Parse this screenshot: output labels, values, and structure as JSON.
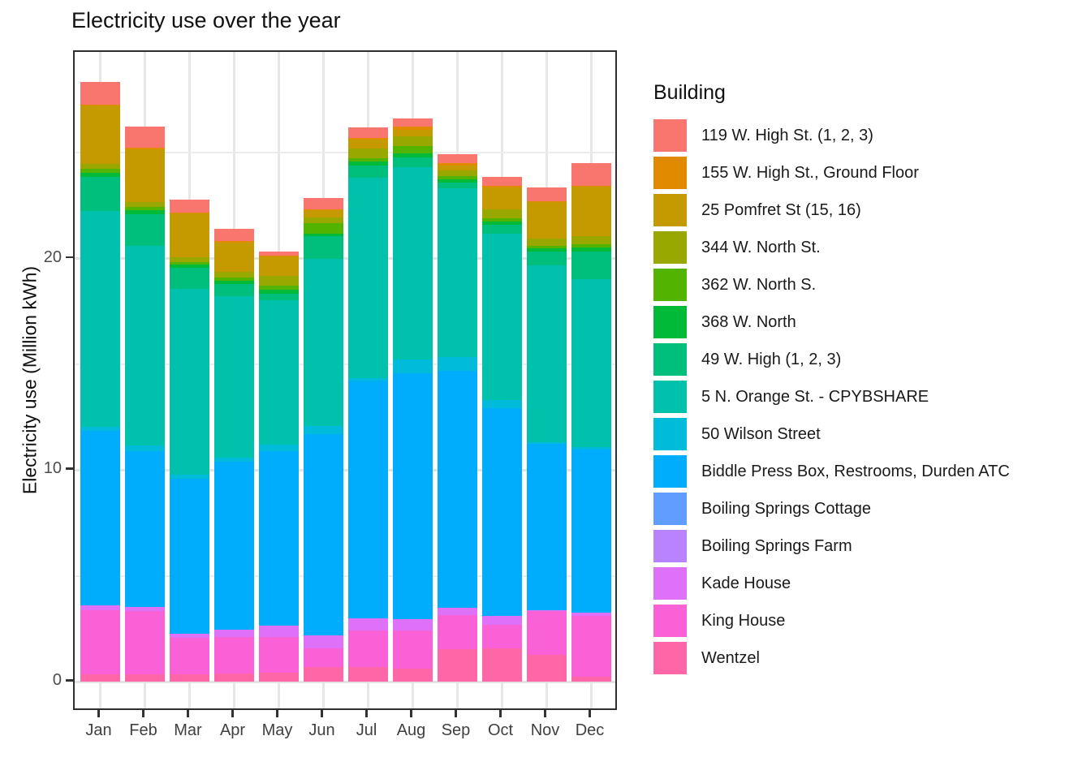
{
  "title": "Electricity use over the year",
  "y_axis": {
    "title": "Electricity use (Million kWh)",
    "ticks": [
      {
        "label": "0",
        "value": 0
      },
      {
        "label": "10",
        "value": 10
      },
      {
        "label": "20",
        "value": 20
      }
    ],
    "minor_gridlines": [
      5,
      15,
      25
    ]
  },
  "x_axis": {
    "categories": [
      "Jan",
      "Feb",
      "Mar",
      "Apr",
      "May",
      "Jun",
      "Jul",
      "Aug",
      "Sep",
      "Oct",
      "Nov",
      "Dec"
    ]
  },
  "legend": {
    "title": "Building"
  },
  "chart_data": {
    "type": "bar",
    "stacked": true,
    "title": "Electricity use over the year",
    "xlabel": "",
    "ylabel": "Electricity use (Million kWh)",
    "ylim": [
      0,
      29.7
    ],
    "grid": true,
    "legend_position": "right",
    "categories": [
      "Jan",
      "Feb",
      "Mar",
      "Apr",
      "May",
      "Jun",
      "Jul",
      "Aug",
      "Sep",
      "Oct",
      "Nov",
      "Dec"
    ],
    "series": [
      {
        "name": "119 W. High St. (1, 2, 3)",
        "color": "#F8766D",
        "values": [
          1.07,
          0.98,
          0.62,
          0.58,
          0.21,
          0.53,
          0.49,
          0.39,
          0.43,
          0.45,
          0.64,
          1.06
        ]
      },
      {
        "name": "155 W. High St., Ground Floor",
        "color": "#E18A00",
        "values": [
          0.06,
          0.06,
          0.05,
          0.05,
          0.04,
          0.04,
          0.06,
          0.13,
          0.1,
          0.06,
          0.06,
          0.05
        ]
      },
      {
        "name": "25 Pomfret St (15, 16)",
        "color": "#C49A00",
        "values": [
          2.74,
          2.52,
          2.07,
          1.41,
          0.92,
          0.36,
          0.42,
          0.3,
          0.23,
          1.04,
          1.71,
          2.34
        ]
      },
      {
        "name": "344 W. North St.",
        "color": "#99A800",
        "values": [
          0.25,
          0.23,
          0.21,
          0.26,
          0.45,
          0.28,
          0.46,
          0.49,
          0.28,
          0.41,
          0.35,
          0.39
        ]
      },
      {
        "name": "362 W. North S.",
        "color": "#53B400",
        "values": [
          0.18,
          0.16,
          0.12,
          0.15,
          0.19,
          0.47,
          0.17,
          0.34,
          0.17,
          0.16,
          0.13,
          0.16
        ]
      },
      {
        "name": "368 W. North",
        "color": "#00BA38",
        "values": [
          0.18,
          0.17,
          0.17,
          0.17,
          0.19,
          0.13,
          0.19,
          0.17,
          0.14,
          0.16,
          0.15,
          0.17
        ]
      },
      {
        "name": "49 W. High (1, 2, 3)",
        "color": "#00BF7D",
        "values": [
          1.64,
          1.5,
          0.99,
          0.55,
          0.3,
          1.06,
          0.58,
          0.47,
          0.26,
          0.41,
          0.64,
          1.31
        ]
      },
      {
        "name": "5 N. Orange St. - CPYBSHARE",
        "color": "#00C1AB",
        "values": [
          10.19,
          9.45,
          8.79,
          7.66,
          6.84,
          7.91,
          9.46,
          9.09,
          7.98,
          7.87,
          8.35,
          7.95
        ]
      },
      {
        "name": "50 Wilson Street",
        "color": "#00BBDA",
        "values": [
          0.19,
          0.26,
          0.19,
          0.19,
          0.32,
          0.38,
          0.11,
          0.64,
          0.66,
          0.38,
          0.1,
          0.1
        ]
      },
      {
        "name": "Biddle Press Box, Restrooms, Durden ATC",
        "color": "#00ACFC",
        "values": [
          8.26,
          7.36,
          7.33,
          7.94,
          8.25,
          9.52,
          11.25,
          11.64,
          11.19,
          9.83,
          7.85,
          7.71
        ]
      },
      {
        "name": "Boiling Springs Cottage",
        "color": "#619CFF",
        "values": [
          0,
          0,
          0,
          0,
          0,
          0,
          0,
          0,
          0,
          0,
          0,
          0
        ]
      },
      {
        "name": "Boiling Springs Farm",
        "color": "#B983FF",
        "values": [
          0,
          0,
          0,
          0,
          0,
          0,
          0,
          0,
          0,
          0,
          0,
          0
        ]
      },
      {
        "name": "Kade House",
        "color": "#DF70F8",
        "values": [
          0.21,
          0.18,
          0.19,
          0.32,
          0.51,
          0.62,
          0.57,
          0.53,
          0.35,
          0.4,
          0.05,
          0.18
        ]
      },
      {
        "name": "King House",
        "color": "#FB61D7",
        "values": [
          3.03,
          3.0,
          1.71,
          1.74,
          1.71,
          0.88,
          1.73,
          1.79,
          1.63,
          1.12,
          2.06,
          2.85
        ]
      },
      {
        "name": "Wentzel",
        "color": "#FF66A8",
        "values": [
          0.35,
          0.35,
          0.35,
          0.38,
          0.41,
          0.69,
          0.69,
          0.63,
          1.52,
          1.58,
          1.27,
          0.24
        ]
      }
    ]
  }
}
